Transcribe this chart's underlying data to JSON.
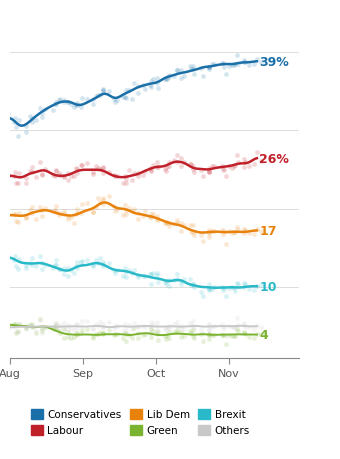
{
  "title": "",
  "colors": {
    "conservatives": "#1a6fa8",
    "labour": "#c0202a",
    "libdem": "#e8820c",
    "brexit": "#29b9c9",
    "green": "#7ab330",
    "others": "#c8c8c8"
  },
  "labels": {
    "conservatives": "Conservatives",
    "labour": "Labour",
    "libdem": "Lib Dem",
    "brexit": "Brexit",
    "green": "Green",
    "others": "Others"
  },
  "end_labels": {
    "conservatives": "39%",
    "labour": "26%",
    "libdem": "17",
    "brexit": "10",
    "green": "4"
  },
  "background": "#ffffff",
  "grid_color": "#e0e0e0",
  "x_tick_labels": [
    "Aug",
    "Sep",
    "Oct",
    "Nov"
  ],
  "ylim": [
    0,
    45
  ],
  "xlim": [
    0,
    125
  ]
}
